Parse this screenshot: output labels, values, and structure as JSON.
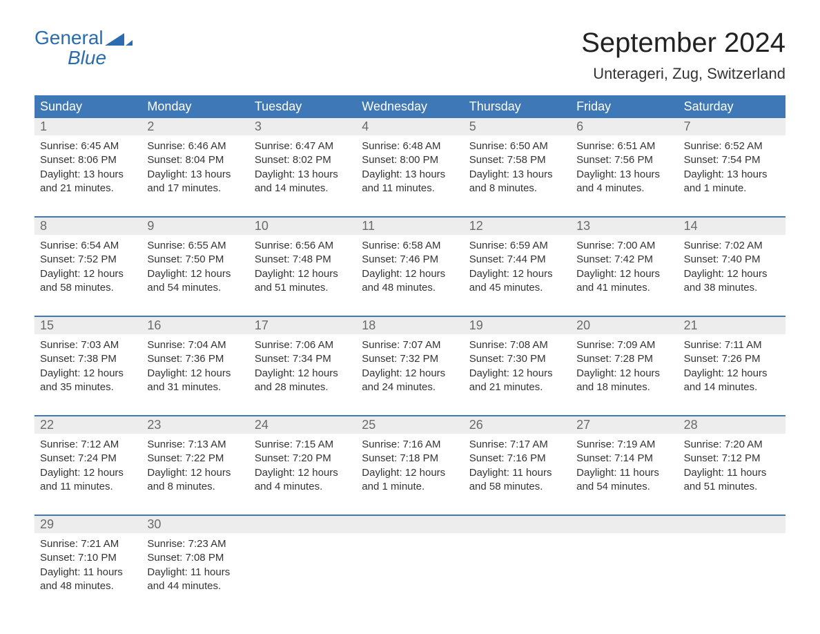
{
  "brand": {
    "part1": "General",
    "part2": "Blue"
  },
  "colors": {
    "accent": "#3f78b6",
    "header_bg": "#3f78b6",
    "header_text": "#ffffff",
    "daynum_bg": "#ededed",
    "daynum_text": "#6a6a6a",
    "body_text": "#333333",
    "logo_color": "#2b6bb0"
  },
  "title": {
    "month": "September 2024",
    "location": "Unterageri, Zug, Switzerland"
  },
  "weekdays": [
    "Sunday",
    "Monday",
    "Tuesday",
    "Wednesday",
    "Thursday",
    "Friday",
    "Saturday"
  ],
  "weeks": [
    {
      "nums": [
        "1",
        "2",
        "3",
        "4",
        "5",
        "6",
        "7"
      ],
      "cells": [
        {
          "sunrise": "Sunrise: 6:45 AM",
          "sunset": "Sunset: 8:06 PM",
          "day1": "Daylight: 13 hours",
          "day2": "and 21 minutes."
        },
        {
          "sunrise": "Sunrise: 6:46 AM",
          "sunset": "Sunset: 8:04 PM",
          "day1": "Daylight: 13 hours",
          "day2": "and 17 minutes."
        },
        {
          "sunrise": "Sunrise: 6:47 AM",
          "sunset": "Sunset: 8:02 PM",
          "day1": "Daylight: 13 hours",
          "day2": "and 14 minutes."
        },
        {
          "sunrise": "Sunrise: 6:48 AM",
          "sunset": "Sunset: 8:00 PM",
          "day1": "Daylight: 13 hours",
          "day2": "and 11 minutes."
        },
        {
          "sunrise": "Sunrise: 6:50 AM",
          "sunset": "Sunset: 7:58 PM",
          "day1": "Daylight: 13 hours",
          "day2": "and 8 minutes."
        },
        {
          "sunrise": "Sunrise: 6:51 AM",
          "sunset": "Sunset: 7:56 PM",
          "day1": "Daylight: 13 hours",
          "day2": "and 4 minutes."
        },
        {
          "sunrise": "Sunrise: 6:52 AM",
          "sunset": "Sunset: 7:54 PM",
          "day1": "Daylight: 13 hours",
          "day2": "and 1 minute."
        }
      ]
    },
    {
      "nums": [
        "8",
        "9",
        "10",
        "11",
        "12",
        "13",
        "14"
      ],
      "cells": [
        {
          "sunrise": "Sunrise: 6:54 AM",
          "sunset": "Sunset: 7:52 PM",
          "day1": "Daylight: 12 hours",
          "day2": "and 58 minutes."
        },
        {
          "sunrise": "Sunrise: 6:55 AM",
          "sunset": "Sunset: 7:50 PM",
          "day1": "Daylight: 12 hours",
          "day2": "and 54 minutes."
        },
        {
          "sunrise": "Sunrise: 6:56 AM",
          "sunset": "Sunset: 7:48 PM",
          "day1": "Daylight: 12 hours",
          "day2": "and 51 minutes."
        },
        {
          "sunrise": "Sunrise: 6:58 AM",
          "sunset": "Sunset: 7:46 PM",
          "day1": "Daylight: 12 hours",
          "day2": "and 48 minutes."
        },
        {
          "sunrise": "Sunrise: 6:59 AM",
          "sunset": "Sunset: 7:44 PM",
          "day1": "Daylight: 12 hours",
          "day2": "and 45 minutes."
        },
        {
          "sunrise": "Sunrise: 7:00 AM",
          "sunset": "Sunset: 7:42 PM",
          "day1": "Daylight: 12 hours",
          "day2": "and 41 minutes."
        },
        {
          "sunrise": "Sunrise: 7:02 AM",
          "sunset": "Sunset: 7:40 PM",
          "day1": "Daylight: 12 hours",
          "day2": "and 38 minutes."
        }
      ]
    },
    {
      "nums": [
        "15",
        "16",
        "17",
        "18",
        "19",
        "20",
        "21"
      ],
      "cells": [
        {
          "sunrise": "Sunrise: 7:03 AM",
          "sunset": "Sunset: 7:38 PM",
          "day1": "Daylight: 12 hours",
          "day2": "and 35 minutes."
        },
        {
          "sunrise": "Sunrise: 7:04 AM",
          "sunset": "Sunset: 7:36 PM",
          "day1": "Daylight: 12 hours",
          "day2": "and 31 minutes."
        },
        {
          "sunrise": "Sunrise: 7:06 AM",
          "sunset": "Sunset: 7:34 PM",
          "day1": "Daylight: 12 hours",
          "day2": "and 28 minutes."
        },
        {
          "sunrise": "Sunrise: 7:07 AM",
          "sunset": "Sunset: 7:32 PM",
          "day1": "Daylight: 12 hours",
          "day2": "and 24 minutes."
        },
        {
          "sunrise": "Sunrise: 7:08 AM",
          "sunset": "Sunset: 7:30 PM",
          "day1": "Daylight: 12 hours",
          "day2": "and 21 minutes."
        },
        {
          "sunrise": "Sunrise: 7:09 AM",
          "sunset": "Sunset: 7:28 PM",
          "day1": "Daylight: 12 hours",
          "day2": "and 18 minutes."
        },
        {
          "sunrise": "Sunrise: 7:11 AM",
          "sunset": "Sunset: 7:26 PM",
          "day1": "Daylight: 12 hours",
          "day2": "and 14 minutes."
        }
      ]
    },
    {
      "nums": [
        "22",
        "23",
        "24",
        "25",
        "26",
        "27",
        "28"
      ],
      "cells": [
        {
          "sunrise": "Sunrise: 7:12 AM",
          "sunset": "Sunset: 7:24 PM",
          "day1": "Daylight: 12 hours",
          "day2": "and 11 minutes."
        },
        {
          "sunrise": "Sunrise: 7:13 AM",
          "sunset": "Sunset: 7:22 PM",
          "day1": "Daylight: 12 hours",
          "day2": "and 8 minutes."
        },
        {
          "sunrise": "Sunrise: 7:15 AM",
          "sunset": "Sunset: 7:20 PM",
          "day1": "Daylight: 12 hours",
          "day2": "and 4 minutes."
        },
        {
          "sunrise": "Sunrise: 7:16 AM",
          "sunset": "Sunset: 7:18 PM",
          "day1": "Daylight: 12 hours",
          "day2": "and 1 minute."
        },
        {
          "sunrise": "Sunrise: 7:17 AM",
          "sunset": "Sunset: 7:16 PM",
          "day1": "Daylight: 11 hours",
          "day2": "and 58 minutes."
        },
        {
          "sunrise": "Sunrise: 7:19 AM",
          "sunset": "Sunset: 7:14 PM",
          "day1": "Daylight: 11 hours",
          "day2": "and 54 minutes."
        },
        {
          "sunrise": "Sunrise: 7:20 AM",
          "sunset": "Sunset: 7:12 PM",
          "day1": "Daylight: 11 hours",
          "day2": "and 51 minutes."
        }
      ]
    },
    {
      "nums": [
        "29",
        "30",
        "",
        "",
        "",
        "",
        ""
      ],
      "cells": [
        {
          "sunrise": "Sunrise: 7:21 AM",
          "sunset": "Sunset: 7:10 PM",
          "day1": "Daylight: 11 hours",
          "day2": "and 48 minutes."
        },
        {
          "sunrise": "Sunrise: 7:23 AM",
          "sunset": "Sunset: 7:08 PM",
          "day1": "Daylight: 11 hours",
          "day2": "and 44 minutes."
        },
        null,
        null,
        null,
        null,
        null
      ]
    }
  ]
}
